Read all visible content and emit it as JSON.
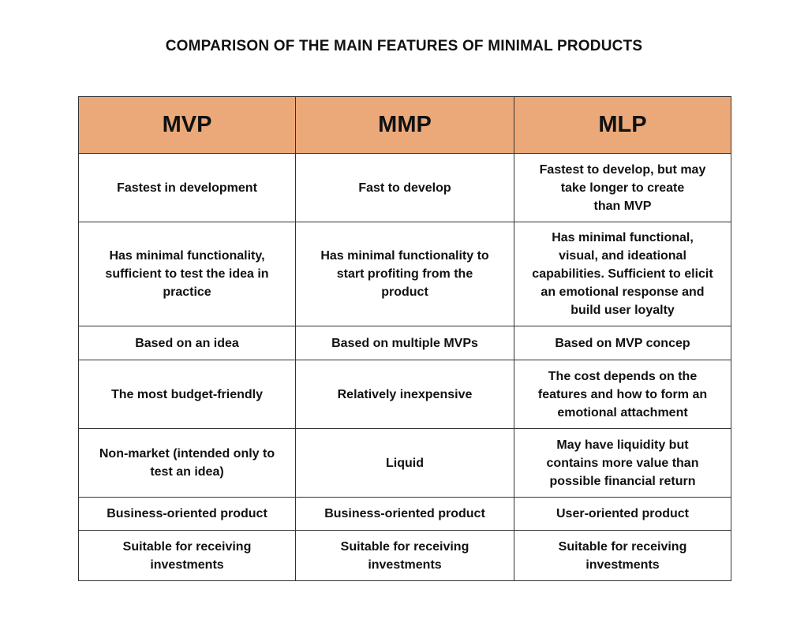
{
  "title": "COMPARISON OF THE MAIN FEATURES OF MINIMAL PRODUCTS",
  "header_color": "#EBA97A",
  "table": {
    "headers": [
      "MVP",
      "MMP",
      "MLP"
    ],
    "rows": [
      [
        "Fastest in development",
        "Fast to develop",
        "Fastest to develop, but may\ntake longer to create\nthan MVP"
      ],
      [
        "Has minimal functionality,\nsufficient to test the idea in\npractice",
        "Has minimal functionality to\nstart profiting from the\nproduct",
        "Has minimal functional,\nvisual, and ideational\ncapabilities. Sufficient to elicit\nan emotional response and\nbuild user loyalty"
      ],
      [
        "Based on an idea",
        "Based on multiple MVPs",
        "Based on MVP concep"
      ],
      [
        "The most budget-friendly",
        "Relatively inexpensive",
        "The cost depends on the\nfeatures and how to form an\nemotional attachment"
      ],
      [
        "Non-market (intended only to\ntest an idea)",
        "Liquid",
        "May have liquidity but\ncontains more value than\npossible financial return"
      ],
      [
        "Business-oriented product",
        "Business-oriented product",
        "User-oriented product"
      ],
      [
        "Suitable for receiving\ninvestments",
        "Suitable for receiving\ninvestments",
        "Suitable for receiving\ninvestments"
      ]
    ]
  }
}
